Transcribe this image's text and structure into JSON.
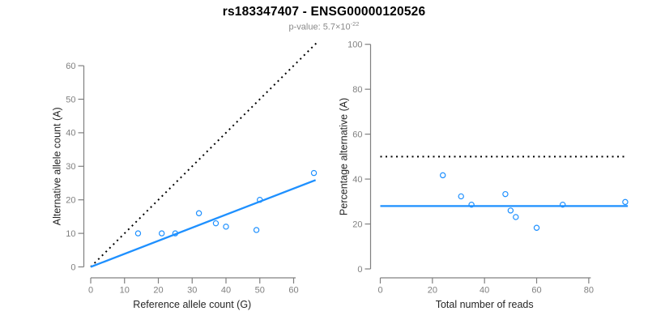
{
  "header": {
    "title": "rs183347407 - ENSG00000120526",
    "subtitle_prefix": "p-value: 5.7×10",
    "subtitle_exponent": "-22"
  },
  "colors": {
    "accent_blue": "#1E90FF",
    "identity_black": "#000000",
    "axis_gray": "#808080",
    "axis_title_dark": "#262626",
    "subtitle_gray": "#8a8a8a",
    "background": "#ffffff"
  },
  "chart_data": [
    {
      "type": "scatter",
      "panel": "left",
      "xlabel": "Reference allele count (G)",
      "ylabel": "Alternative allele count (A)",
      "x_ticks": [
        0,
        10,
        20,
        30,
        40,
        50,
        60
      ],
      "y_ticks": [
        0,
        10,
        20,
        30,
        40,
        50,
        60
      ],
      "xlim": [
        0,
        66.8
      ],
      "ylim": [
        0,
        66.8
      ],
      "grid": false,
      "points": [
        [
          14,
          10
        ],
        [
          21,
          10
        ],
        [
          25,
          10
        ],
        [
          32,
          16
        ],
        [
          37,
          13
        ],
        [
          40,
          12
        ],
        [
          49,
          11
        ],
        [
          50,
          20
        ],
        [
          66,
          28
        ]
      ],
      "lines": [
        {
          "name": "identity-line",
          "style": "dotted",
          "color": "#000000",
          "x1": 0,
          "y1": 0,
          "x2": 66.8,
          "y2": 66.8
        },
        {
          "name": "fit-line",
          "style": "solid",
          "color": "#1E90FF",
          "x1": 0,
          "y1": 0,
          "x2": 66.5,
          "y2": 25.9
        }
      ]
    },
    {
      "type": "scatter",
      "panel": "right",
      "xlabel": "Total number of reads",
      "ylabel": "Percentage alternative (A)",
      "x_ticks": [
        0,
        20,
        40,
        60,
        80
      ],
      "y_ticks": [
        0,
        20,
        40,
        60,
        80,
        100
      ],
      "xlim": [
        0,
        95
      ],
      "ylim": [
        0,
        104
      ],
      "grid": false,
      "points": [
        [
          24,
          41.7
        ],
        [
          31,
          32.3
        ],
        [
          35,
          28.6
        ],
        [
          48,
          33.3
        ],
        [
          50,
          26
        ],
        [
          52,
          23.1
        ],
        [
          60,
          18.3
        ],
        [
          70,
          28.6
        ],
        [
          94,
          29.8
        ]
      ],
      "lines": [
        {
          "name": "expected-50pct-line",
          "style": "dotted",
          "color": "#000000",
          "x1": 0,
          "y1": 50,
          "x2": 94,
          "y2": 50
        },
        {
          "name": "mean-percentage-line",
          "style": "solid",
          "color": "#1E90FF",
          "x1": 0,
          "y1": 28,
          "x2": 95,
          "y2": 28
        }
      ]
    }
  ]
}
